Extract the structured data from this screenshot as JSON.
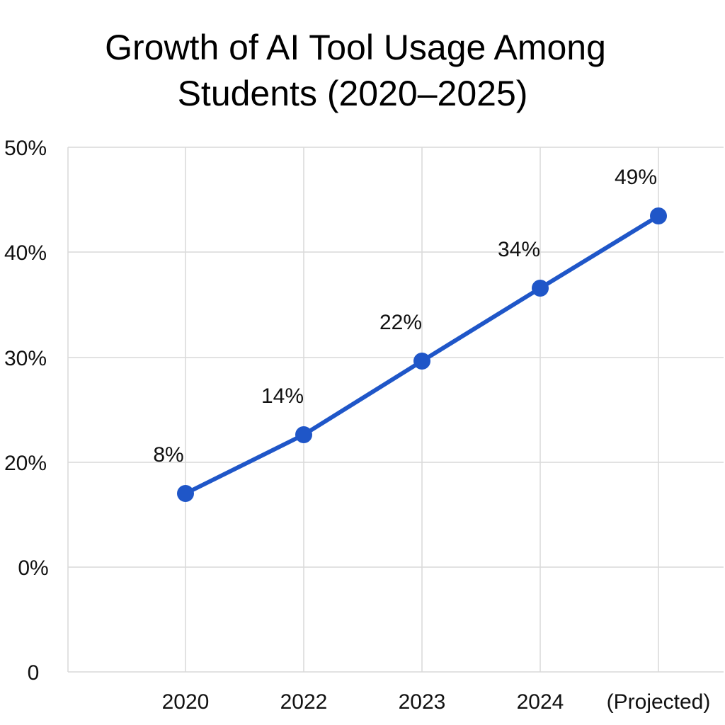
{
  "chart_data": {
    "type": "line",
    "title_lines": [
      "Growth of AI Tool Usage Among",
      "Students (2020–2025)"
    ],
    "xlabel": "",
    "ylabel": "",
    "categories": [
      "2020",
      "2022",
      "2023",
      "2024",
      "(Projected)"
    ],
    "y_tick_labels": [
      "0",
      "0%",
      "20%",
      "30%",
      "40%",
      "50%"
    ],
    "series": [
      {
        "values": [
          8,
          14,
          22,
          34,
          49
        ],
        "data_labels": [
          "8%",
          "14%",
          "22%",
          "34%",
          "49%"
        ],
        "color": "#1f56c8"
      }
    ],
    "grid": true,
    "legend": "none"
  }
}
